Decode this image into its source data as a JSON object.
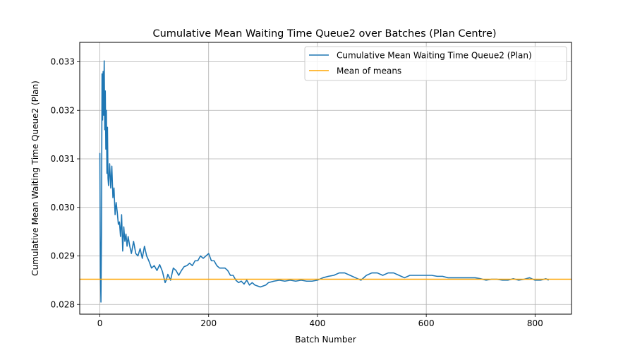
{
  "chart_data": {
    "type": "line",
    "title": "Cumulative Mean Waiting Time Queue2 over Batches (Plan Centre)",
    "xlabel": "Batch Number",
    "ylabel": "Cumulative Mean Waiting Time Queue2 (Plan)",
    "xlim": [
      -37,
      867
    ],
    "ylim": [
      0.0278,
      0.0334
    ],
    "xticks": [
      0,
      200,
      400,
      600,
      800
    ],
    "yticks": [
      0.028,
      0.029,
      0.03,
      0.031,
      0.032,
      0.033
    ],
    "xtick_labels": [
      "0",
      "200",
      "400",
      "600",
      "800"
    ],
    "ytick_labels": [
      "0.028",
      "0.029",
      "0.030",
      "0.031",
      "0.032",
      "0.033"
    ],
    "grid": true,
    "legend_position": "top-right",
    "series": [
      {
        "name": "Cumulative Mean Waiting Time Queue2 (Plan)",
        "color": "#1f77b4",
        "x": [
          0,
          1,
          2,
          3,
          4,
          5,
          6,
          7,
          8,
          9,
          10,
          11,
          12,
          13,
          14,
          15,
          16,
          18,
          20,
          22,
          24,
          26,
          28,
          30,
          32,
          34,
          36,
          38,
          40,
          42,
          44,
          46,
          48,
          50,
          52,
          55,
          58,
          62,
          66,
          70,
          74,
          78,
          82,
          86,
          90,
          95,
          100,
          105,
          110,
          115,
          120,
          122,
          125,
          130,
          135,
          140,
          145,
          150,
          155,
          160,
          165,
          170,
          175,
          180,
          185,
          190,
          195,
          200,
          205,
          210,
          215,
          220,
          225,
          230,
          235,
          240,
          245,
          250,
          255,
          260,
          265,
          270,
          275,
          280,
          285,
          290,
          295,
          300,
          305,
          310,
          320,
          330,
          340,
          350,
          360,
          370,
          380,
          390,
          400,
          410,
          420,
          430,
          440,
          450,
          460,
          470,
          480,
          490,
          500,
          510,
          520,
          530,
          540,
          550,
          560,
          570,
          580,
          590,
          600,
          610,
          620,
          630,
          640,
          650,
          660,
          670,
          680,
          690,
          700,
          710,
          720,
          730,
          740,
          750,
          760,
          770,
          780,
          790,
          800,
          810,
          820,
          825
        ],
        "y": [
          0.03112,
          0.0287,
          0.02805,
          0.0295,
          0.03275,
          0.0318,
          0.0328,
          0.0319,
          0.03302,
          0.0316,
          0.0324,
          0.0312,
          0.032,
          0.0307,
          0.03165,
          0.0306,
          0.03045,
          0.0309,
          0.0304,
          0.03085,
          0.0302,
          0.0304,
          0.02985,
          0.0301,
          0.0299,
          0.02965,
          0.0297,
          0.0294,
          0.02985,
          0.0291,
          0.0296,
          0.0293,
          0.02945,
          0.0292,
          0.0294,
          0.0292,
          0.02905,
          0.0293,
          0.02905,
          0.029,
          0.02915,
          0.02895,
          0.0292,
          0.029,
          0.0289,
          0.02875,
          0.0288,
          0.0287,
          0.02882,
          0.02868,
          0.02845,
          0.0285,
          0.02862,
          0.0285,
          0.02875,
          0.0287,
          0.0286,
          0.0287,
          0.02878,
          0.0288,
          0.02885,
          0.0288,
          0.0289,
          0.0289,
          0.029,
          0.02895,
          0.029,
          0.02905,
          0.0289,
          0.0289,
          0.0288,
          0.02875,
          0.02875,
          0.02875,
          0.0287,
          0.0286,
          0.0286,
          0.0285,
          0.02845,
          0.02848,
          0.02842,
          0.0285,
          0.0284,
          0.02845,
          0.0284,
          0.02838,
          0.02836,
          0.02838,
          0.0284,
          0.02845,
          0.02848,
          0.0285,
          0.02848,
          0.0285,
          0.02848,
          0.0285,
          0.02848,
          0.02848,
          0.0285,
          0.02855,
          0.02858,
          0.0286,
          0.02865,
          0.02865,
          0.0286,
          0.02855,
          0.0285,
          0.0286,
          0.02865,
          0.02865,
          0.0286,
          0.02865,
          0.02865,
          0.0286,
          0.02855,
          0.0286,
          0.0286,
          0.0286,
          0.0286,
          0.0286,
          0.02858,
          0.02858,
          0.02855,
          0.02855,
          0.02855,
          0.02855,
          0.02855,
          0.02855,
          0.02853,
          0.0285,
          0.02852,
          0.02852,
          0.0285,
          0.0285,
          0.02853,
          0.0285,
          0.02852,
          0.02855,
          0.0285,
          0.0285,
          0.02853,
          0.0285
        ]
      },
      {
        "name": "Mean of means",
        "color": "#ffa500",
        "y_constant": 0.02852
      }
    ]
  }
}
